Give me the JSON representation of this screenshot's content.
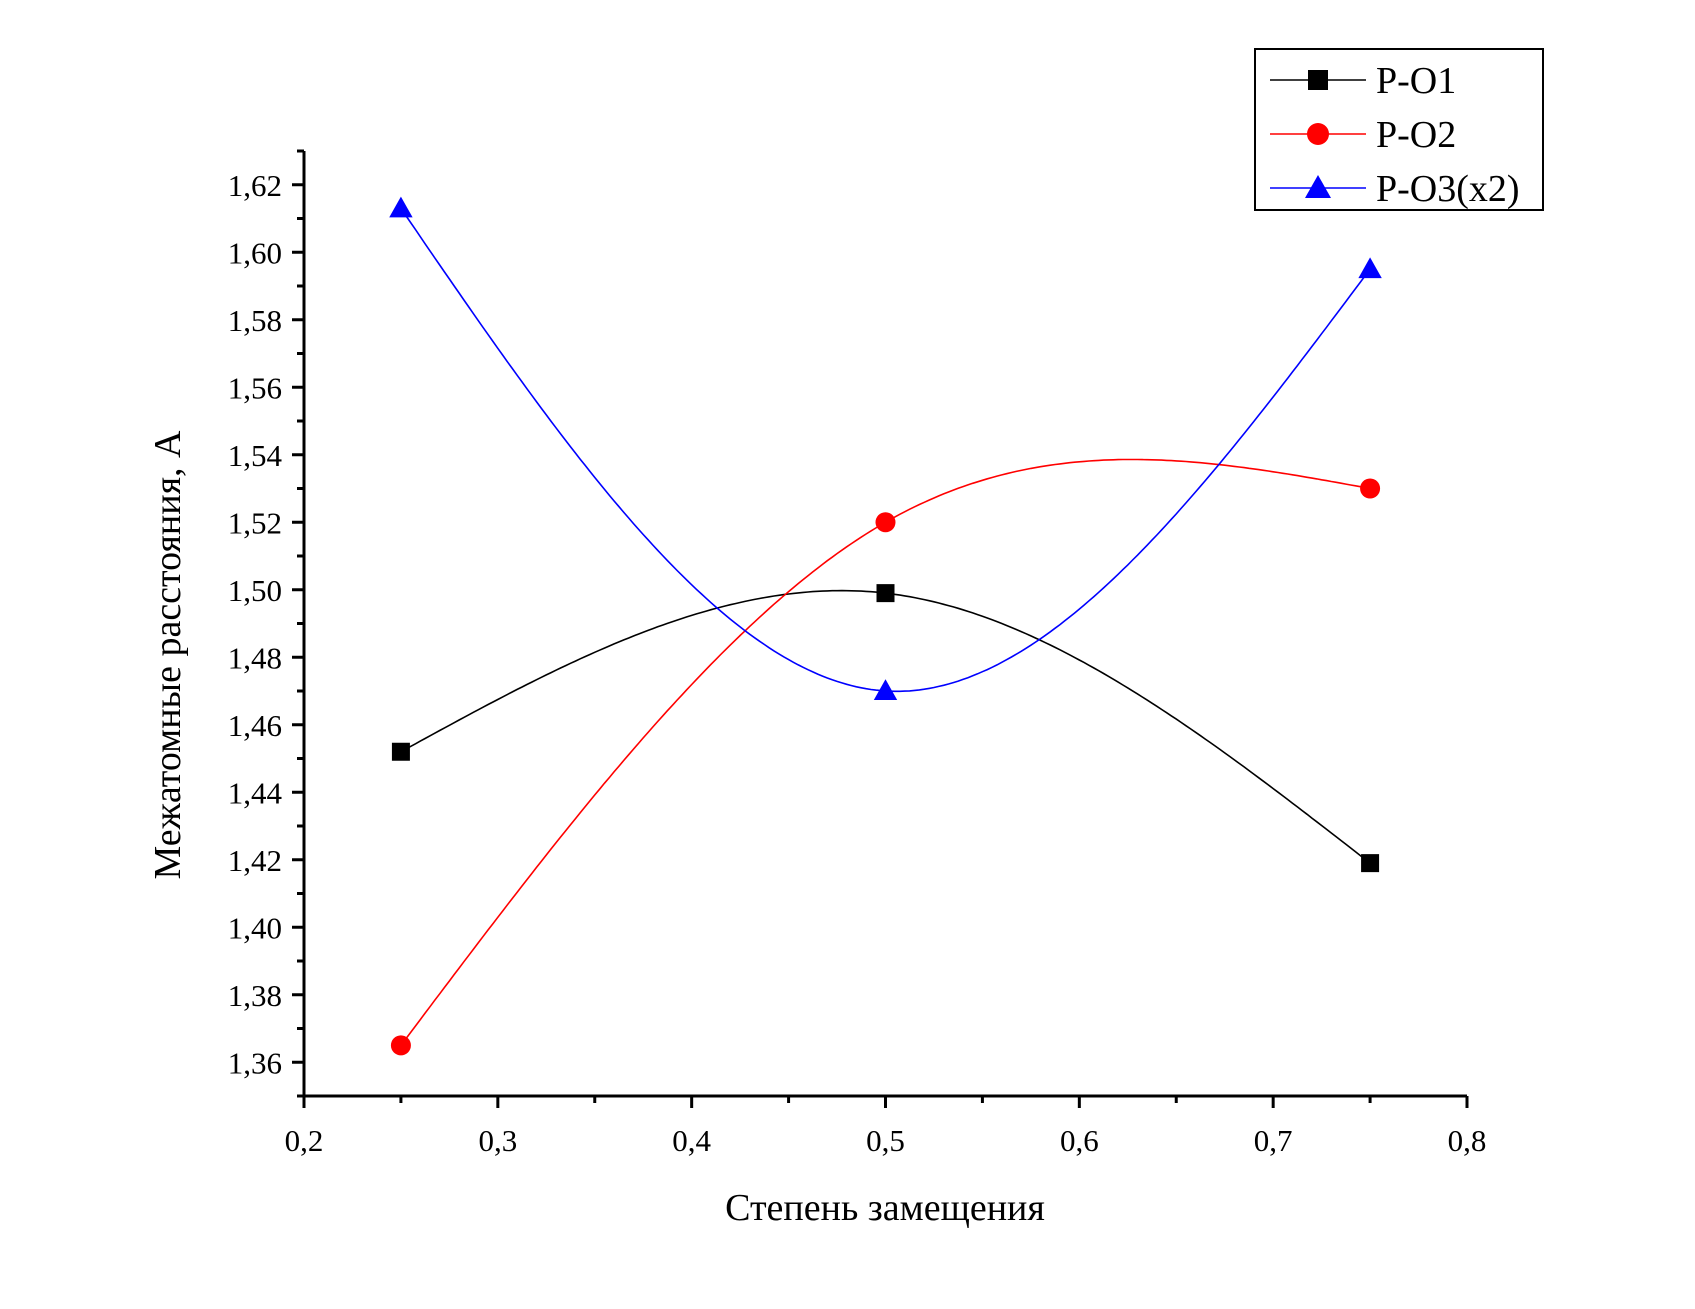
{
  "chart_data": {
    "type": "line",
    "title": "",
    "xlabel": "Степень замещения",
    "ylabel": "Межатомные расстояния, А",
    "xlim": [
      0.2,
      0.8
    ],
    "ylim": [
      1.35,
      1.63
    ],
    "xticks": [
      "0,2",
      "0,3",
      "0,4",
      "0,5",
      "0,6",
      "0,7",
      "0,8"
    ],
    "yticks": [
      "1,36",
      "1,38",
      "1,40",
      "1,42",
      "1,44",
      "1,46",
      "1,48",
      "1,50",
      "1,52",
      "1,54",
      "1,56",
      "1,58",
      "1,60",
      "1,62"
    ],
    "grid": false,
    "legend_position": "top-right",
    "x": [
      0.25,
      0.5,
      0.75
    ],
    "series": [
      {
        "name": "P-O1",
        "color": "#000000",
        "marker": "square",
        "values": [
          1.452,
          1.499,
          1.419
        ]
      },
      {
        "name": "P-O2",
        "color": "#ff0000",
        "marker": "circle",
        "values": [
          1.365,
          1.52,
          1.53
        ]
      },
      {
        "name": "P-O3(x2)",
        "color": "#0000ff",
        "marker": "triangle",
        "values": [
          1.613,
          1.47,
          1.595
        ]
      }
    ]
  }
}
